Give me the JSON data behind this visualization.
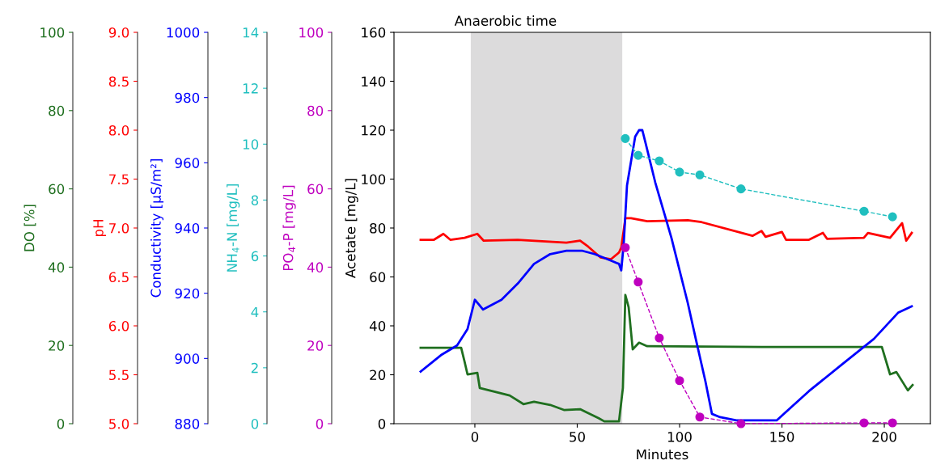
{
  "chart_data": [
    {
      "type": "line",
      "ylabel": "DO [%]",
      "xlim": [
        -196.4,
        222.5
      ],
      "xticks": [
        0,
        50,
        100,
        150,
        200
      ],
      "ylim": [
        0,
        100
      ],
      "yticks": [
        0,
        20,
        40,
        60,
        80,
        100
      ],
      "tick_labels": "y",
      "series": [
        {
          "color": "#1f6f1f",
          "marker": "none",
          "line_style": "solid",
          "x": [
            -26.5,
            -6.7,
            -5.1,
            -3.6,
            1.2,
            2.4,
            10.3,
            17,
            23.7,
            28.9,
            36.8,
            43.5,
            51.4,
            60.5,
            63.2,
            70.4,
            72.3,
            73.5,
            75.1,
            77.1,
            80.2,
            84.2,
            140,
            198.8,
            202.8,
            205.9,
            211.5,
            213.8
          ],
          "values": [
            19.4,
            19.4,
            16,
            12.6,
            13.0,
            9.1,
            8.1,
            7.2,
            5.0,
            5.6,
            4.8,
            3.5,
            3.7,
            1.4,
            0.6,
            0.6,
            9.1,
            32.9,
            29.8,
            19.0,
            20.7,
            19.8,
            19.6,
            19.6,
            12.6,
            13.2,
            8.5,
            9.9
          ]
        }
      ]
    },
    {
      "type": "line",
      "ylabel": "pH",
      "xlim": [
        -164.8,
        222.5
      ],
      "xticks": [
        0,
        50,
        100,
        150,
        200
      ],
      "ylim": [
        5.0,
        9.0
      ],
      "yticks": [
        {
          "value": 5,
          "label": "5.0"
        },
        5.5,
        {
          "value": 6,
          "label": "6.0"
        },
        6.5,
        {
          "value": 7,
          "label": "7.0"
        },
        7.5,
        {
          "value": 8,
          "label": "8.0"
        },
        8.5,
        {
          "value": 9,
          "label": "9.0"
        }
      ],
      "tick_labels": "y",
      "series": [
        {
          "color": "#ff0000",
          "marker": "none",
          "line_style": "solid",
          "x": [
            -26.5,
            -20,
            -15.4,
            -12,
            -5,
            1.2,
            4.3,
            20.9,
            44.7,
            51.4,
            55.3,
            61.3,
            66.4,
            70.4,
            71.5,
            73.5,
            76.3,
            84.2,
            104,
            110.7,
            135.6,
            140,
            142,
            150,
            152,
            163.2,
            170,
            172,
            190,
            192,
            202.8,
            208.7,
            210.7,
            213.4
          ],
          "values": [
            6.88,
            6.88,
            6.94,
            6.88,
            6.9,
            6.94,
            6.87,
            6.88,
            6.85,
            6.87,
            6.81,
            6.7,
            6.68,
            6.75,
            6.8,
            7.1,
            7.1,
            7.07,
            7.08,
            7.06,
            6.92,
            6.97,
            6.91,
            6.96,
            6.88,
            6.88,
            6.95,
            6.89,
            6.9,
            6.95,
            6.9,
            7.05,
            6.87,
            6.95
          ]
        }
      ]
    },
    {
      "type": "line",
      "ylabel": "Conductivity [μS/m²]",
      "xlim": [
        -130.4,
        222.5
      ],
      "xticks": [
        0,
        50,
        100,
        150,
        200
      ],
      "ylim": [
        880,
        1000
      ],
      "yticks": [
        880,
        900,
        920,
        940,
        960,
        980,
        1000
      ],
      "tick_labels": "y",
      "series": [
        {
          "color": "#0000ff",
          "marker": "none",
          "line_style": "solid",
          "x": [
            -26.5,
            -16.6,
            -8.7,
            -3.6,
            0,
            4.0,
            13,
            21,
            28.9,
            36.8,
            44.7,
            52.6,
            58.5,
            66.4,
            70.4,
            71.5,
            72.7,
            74.3,
            78.3,
            80.2,
            81.8,
            83.4,
            88.1,
            96,
            104,
            107.9,
            112.6,
            115.8,
            119.8,
            127.7,
            133.6,
            139.5,
            147.4,
            163.2,
            179,
            194.9,
            206.7,
            213.4
          ],
          "values": [
            896,
            901,
            904,
            909,
            918,
            915,
            918,
            923,
            929,
            932,
            933,
            933,
            932,
            930,
            929,
            927,
            935,
            953,
            968,
            970,
            970,
            966,
            954,
            937,
            917,
            906,
            893,
            883,
            882,
            881,
            881,
            881,
            881,
            890,
            898,
            906,
            914,
            916
          ]
        }
      ]
    },
    {
      "type": "line",
      "ylabel": "NH$_{4}$-N [mg/L]",
      "xlim": [
        -101.5,
        222.5
      ],
      "xticks": [
        0,
        50,
        100,
        150,
        200
      ],
      "ylim": [
        0,
        14
      ],
      "yticks": [
        0,
        2,
        4,
        6,
        8,
        10,
        12,
        14
      ],
      "tick_labels": "y",
      "series": [
        {
          "color": "#20bfbf",
          "marker": "circle",
          "line_style": "dashed",
          "x": [
            73.5,
            79.8,
            90.1,
            100,
            109.9,
            130,
            190.1,
            204
          ],
          "values": [
            10.2,
            9.6,
            9.4,
            9.0,
            8.9,
            8.4,
            7.6,
            7.4
          ]
        }
      ]
    },
    {
      "type": "line",
      "ylabel": "PO$_{4}$-P [mg/L]",
      "xlim": [
        -69.9,
        222.5
      ],
      "xticks": [
        0,
        50,
        100,
        150,
        200
      ],
      "ylim": [
        0,
        100
      ],
      "yticks": [
        0,
        20,
        40,
        60,
        80,
        100
      ],
      "tick_labels": "y",
      "series": [
        {
          "color": "#bf00bf",
          "marker": "circle",
          "line_style": "dashed",
          "x": [
            73.5,
            79.8,
            90.1,
            100,
            109.9,
            130,
            190.1,
            204
          ],
          "values": [
            45.0,
            36.2,
            21.9,
            11.0,
            1.7,
            0,
            0.2,
            0.2
          ]
        }
      ]
    },
    {
      "type": "line",
      "grid": false,
      "xlabel": "Minutes",
      "ylabel": "Acetate [mg/L]",
      "xlim": [
        -39.5,
        222.5
      ],
      "xticks": [
        0,
        50,
        100,
        150,
        200
      ],
      "ylim": [
        0,
        160
      ],
      "yticks": [
        0,
        20,
        40,
        60,
        80,
        100,
        120,
        140,
        160
      ],
      "bands": [
        {
          "axis": "x",
          "from": -2,
          "to": 72,
          "label": "Anaerobic time",
          "color": "#dcdbdc"
        }
      ]
    }
  ]
}
